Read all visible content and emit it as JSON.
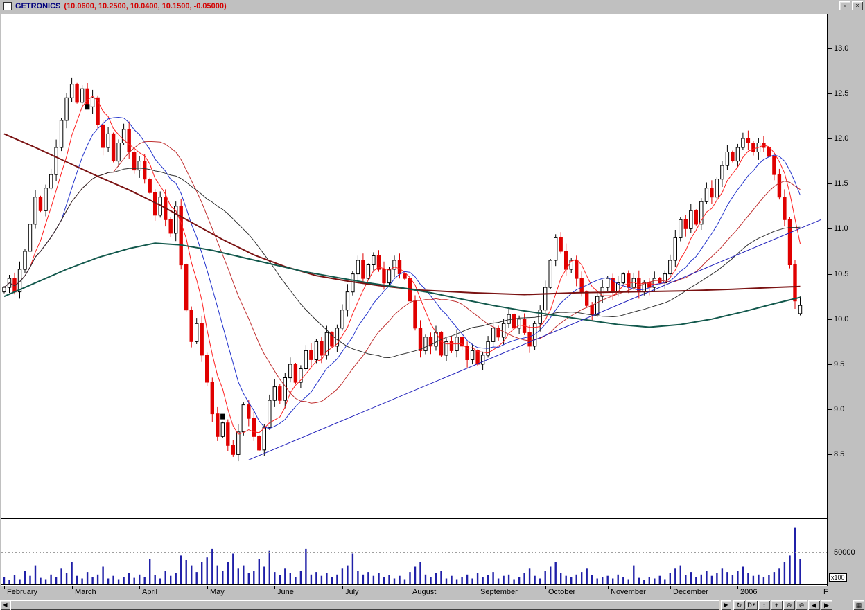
{
  "window": {
    "title": "GETRONICS",
    "quote": "(10.0600, 10.2500, 10.0400, 10.1500, -0.05000)",
    "controls": {
      "maximize": "▫",
      "close": "×"
    }
  },
  "axis": {
    "price_ticks": [
      "13.0",
      "12.5",
      "12.0",
      "11.5",
      "11.0",
      "10.5",
      "10.0",
      "9.5",
      "9.0",
      "8.5"
    ],
    "volume_tick_label": "50000",
    "volume_tick_value": 50000,
    "scale_badge": "x100"
  },
  "months": [
    {
      "label": "February",
      "i": 0
    },
    {
      "label": "March",
      "i": 13
    },
    {
      "label": "April",
      "i": 26
    },
    {
      "label": "May",
      "i": 39
    },
    {
      "label": "June",
      "i": 52
    },
    {
      "label": "July",
      "i": 65
    },
    {
      "label": "August",
      "i": 78
    },
    {
      "label": "September",
      "i": 91
    },
    {
      "label": "October",
      "i": 104
    },
    {
      "label": "November",
      "i": 116
    },
    {
      "label": "December",
      "i": 128
    },
    {
      "label": "2006",
      "i": 141
    },
    {
      "label": "F",
      "i": 157
    }
  ],
  "scrollbar": {
    "left": "◀",
    "right": "▶"
  },
  "toolbar": {
    "buttons": [
      {
        "name": "refresh-button",
        "glyph": "↻",
        "caret": ""
      },
      {
        "name": "periodicity-button",
        "glyph": "D",
        "caret": "▼"
      },
      {
        "name": "vertical-zoom-button",
        "glyph": "↕",
        "caret": ""
      },
      {
        "name": "crosshair-button",
        "glyph": "+",
        "caret": ""
      },
      {
        "name": "zoom-in-button",
        "glyph": "⊕",
        "caret": ""
      },
      {
        "name": "zoom-out-button",
        "glyph": "⊖",
        "caret": ""
      },
      {
        "name": "scroll-left-button",
        "glyph": "◀",
        "caret": ""
      },
      {
        "name": "scroll-right-button",
        "glyph": "▶",
        "caret": ""
      }
    ],
    "grid_button_glyph": "▦"
  },
  "chart_data": {
    "type": "candlestick+volume",
    "symbol": "GETRONICS",
    "timeframe": "daily",
    "x_range": "February 2005 - February 2006",
    "price_axis_range": [
      8.5,
      13.0
    ],
    "last_quote": {
      "open": 10.06,
      "high": 10.25,
      "low": 10.04,
      "close": 10.15,
      "change": -0.05
    },
    "closes": [
      10.35,
      10.45,
      10.3,
      10.55,
      10.75,
      11.05,
      11.35,
      11.2,
      11.45,
      11.6,
      11.9,
      12.2,
      12.45,
      12.6,
      12.4,
      12.55,
      12.35,
      12.45,
      12.15,
      11.9,
      12.05,
      11.75,
      11.95,
      12.1,
      11.85,
      11.65,
      11.75,
      11.55,
      11.4,
      11.15,
      11.35,
      11.1,
      10.95,
      11.25,
      10.6,
      10.1,
      9.75,
      9.95,
      9.6,
      9.3,
      8.95,
      8.7,
      8.85,
      8.6,
      8.5,
      8.75,
      9.05,
      8.9,
      8.7,
      8.55,
      8.8,
      9.1,
      9.25,
      9.1,
      9.35,
      9.5,
      9.3,
      9.45,
      9.65,
      9.55,
      9.75,
      9.6,
      9.85,
      9.7,
      9.9,
      10.1,
      10.3,
      10.5,
      10.65,
      10.45,
      10.6,
      10.7,
      10.55,
      10.4,
      10.55,
      10.65,
      10.5,
      10.45,
      10.2,
      9.9,
      9.65,
      9.8,
      9.7,
      9.85,
      9.6,
      9.75,
      9.65,
      9.8,
      9.7,
      9.55,
      9.65,
      9.5,
      9.6,
      9.75,
      9.9,
      9.8,
      9.95,
      10.05,
      9.9,
      10.0,
      9.85,
      9.7,
      9.95,
      10.1,
      10.35,
      10.65,
      10.9,
      10.75,
      10.55,
      10.65,
      10.45,
      10.3,
      10.15,
      10.05,
      10.25,
      10.35,
      10.45,
      10.3,
      10.4,
      10.5,
      10.35,
      10.45,
      10.3,
      10.4,
      10.35,
      10.45,
      10.4,
      10.5,
      10.65,
      10.9,
      11.1,
      11.0,
      11.2,
      11.05,
      11.3,
      11.45,
      11.35,
      11.55,
      11.7,
      11.85,
      11.75,
      11.9,
      12.0,
      11.95,
      11.85,
      11.95,
      11.9,
      11.8,
      11.6,
      11.35,
      11.1,
      10.6,
      10.2,
      10.15
    ],
    "volumes": [
      12000,
      8000,
      15000,
      9000,
      22000,
      14000,
      30000,
      11000,
      9000,
      16000,
      12000,
      25000,
      18000,
      35000,
      14000,
      10000,
      20000,
      12000,
      16000,
      28000,
      10000,
      14000,
      9000,
      12000,
      18000,
      11000,
      16000,
      12000,
      40000,
      15000,
      10000,
      22000,
      14000,
      18000,
      45000,
      38000,
      30000,
      20000,
      35000,
      42000,
      55000,
      30000,
      22000,
      35000,
      48000,
      25000,
      30000,
      18000,
      22000,
      40000,
      28000,
      52000,
      20000,
      15000,
      25000,
      18000,
      12000,
      22000,
      55000,
      16000,
      20000,
      14000,
      18000,
      12000,
      16000,
      25000,
      30000,
      48000,
      22000,
      16000,
      20000,
      14000,
      18000,
      12000,
      15000,
      10000,
      14000,
      9000,
      20000,
      28000,
      35000,
      16000,
      12000,
      18000,
      22000,
      10000,
      14000,
      9000,
      12000,
      16000,
      10000,
      18000,
      12000,
      15000,
      20000,
      10000,
      14000,
      16000,
      9000,
      12000,
      18000,
      25000,
      14000,
      10000,
      22000,
      28000,
      35000,
      18000,
      14000,
      12000,
      16000,
      20000,
      25000,
      15000,
      10000,
      12000,
      14000,
      10000,
      16000,
      12000,
      9000,
      30000,
      11000,
      8000,
      12000,
      10000,
      14000,
      9000,
      18000,
      25000,
      30000,
      15000,
      20000,
      12000,
      16000,
      22000,
      14000,
      18000,
      25000,
      20000,
      15000,
      22000,
      28000,
      18000,
      14000,
      16000,
      12000,
      15000,
      20000,
      25000,
      35000,
      45000,
      88000,
      40000
    ],
    "last_candle": {
      "open": 10.06,
      "high": 10.25,
      "low": 10.04,
      "close": 10.15
    },
    "black_marks": [
      [
        16,
        12.35
      ],
      [
        42,
        8.92
      ]
    ],
    "moving_averages_short": [
      {
        "period": 6,
        "color": "#ff2020",
        "width": 1
      },
      {
        "period": 12,
        "color": "#2233cc",
        "width": 1
      },
      {
        "period": 22,
        "color": "#c03030",
        "width": 1
      },
      {
        "period": 40,
        "color": "#303030",
        "width": 1
      }
    ],
    "ma_long": [
      {
        "name": "long-ma-maroon",
        "color": "#7a1212",
        "width": 2,
        "points": [
          [
            0,
            12.05
          ],
          [
            6,
            11.9
          ],
          [
            12,
            11.74
          ],
          [
            18,
            11.58
          ],
          [
            24,
            11.43
          ],
          [
            30,
            11.26
          ],
          [
            36,
            11.07
          ],
          [
            42,
            10.88
          ],
          [
            48,
            10.71
          ],
          [
            54,
            10.58
          ],
          [
            60,
            10.48
          ],
          [
            66,
            10.42
          ],
          [
            72,
            10.37
          ],
          [
            80,
            10.32
          ],
          [
            90,
            10.29
          ],
          [
            100,
            10.27
          ],
          [
            110,
            10.29
          ],
          [
            120,
            10.3
          ],
          [
            130,
            10.31
          ],
          [
            140,
            10.33
          ],
          [
            148,
            10.35
          ],
          [
            153,
            10.36
          ]
        ]
      },
      {
        "name": "long-ma-teal",
        "color": "#12584c",
        "width": 2,
        "points": [
          [
            0,
            10.25
          ],
          [
            6,
            10.4
          ],
          [
            12,
            10.55
          ],
          [
            18,
            10.68
          ],
          [
            24,
            10.78
          ],
          [
            29,
            10.84
          ],
          [
            34,
            10.82
          ],
          [
            40,
            10.76
          ],
          [
            46,
            10.68
          ],
          [
            52,
            10.6
          ],
          [
            58,
            10.52
          ],
          [
            64,
            10.46
          ],
          [
            70,
            10.4
          ],
          [
            76,
            10.35
          ],
          [
            82,
            10.29
          ],
          [
            88,
            10.22
          ],
          [
            94,
            10.15
          ],
          [
            100,
            10.09
          ],
          [
            106,
            10.04
          ],
          [
            112,
            9.99
          ],
          [
            118,
            9.94
          ],
          [
            124,
            9.91
          ],
          [
            130,
            9.94
          ],
          [
            136,
            10.0
          ],
          [
            142,
            10.08
          ],
          [
            148,
            10.17
          ],
          [
            153,
            10.24
          ]
        ]
      }
    ],
    "trendline": {
      "i1": 47,
      "p1": 8.44,
      "i2": 157,
      "p2": 11.1,
      "color": "#2020bb"
    },
    "colors": {
      "candle_up": "#ffffff",
      "candle_down": "#e00000",
      "outline": "#000000",
      "volume": "#2020a8"
    }
  }
}
